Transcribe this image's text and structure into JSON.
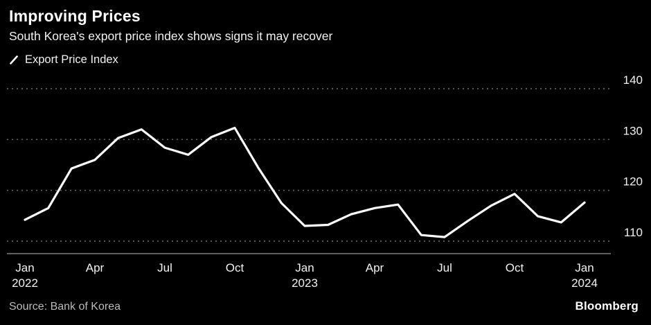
{
  "header": {
    "title": "Improving Prices",
    "subtitle": "South Korea's export price index shows signs it may recover"
  },
  "legend": {
    "label": "Export Price Index"
  },
  "footer": {
    "source": "Source: Bank of Korea",
    "brand": "Bloomberg"
  },
  "chart_data": {
    "type": "line",
    "title": "Improving Prices",
    "subtitle": "South Korea's export price index shows signs it may recover",
    "series_name": "Export Price Index",
    "categories": [
      "Jan 2022",
      "Feb 2022",
      "Mar 2022",
      "Apr 2022",
      "May 2022",
      "Jun 2022",
      "Jul 2022",
      "Aug 2022",
      "Sep 2022",
      "Oct 2022",
      "Nov 2022",
      "Dec 2022",
      "Jan 2023",
      "Feb 2023",
      "Mar 2023",
      "Apr 2023",
      "May 2023",
      "Jun 2023",
      "Jul 2023",
      "Aug 2023",
      "Sep 2023",
      "Oct 2023",
      "Nov 2023",
      "Dec 2023",
      "Jan 2024"
    ],
    "values": [
      114.2,
      116.5,
      124.3,
      126.0,
      130.3,
      132.0,
      128.4,
      127.0,
      130.5,
      132.3,
      124.5,
      117.5,
      113.0,
      113.2,
      115.3,
      116.5,
      117.2,
      111.2,
      110.8,
      114.0,
      117.0,
      119.3,
      114.9,
      113.7,
      117.6
    ],
    "ylim": [
      108,
      142
    ],
    "yticks": [
      110,
      120,
      130,
      140
    ],
    "xticks": [
      {
        "pos": 0,
        "line1": "Jan",
        "line2": "2022"
      },
      {
        "pos": 3,
        "line1": "Apr"
      },
      {
        "pos": 6,
        "line1": "Jul"
      },
      {
        "pos": 9,
        "line1": "Oct"
      },
      {
        "pos": 12,
        "line1": "Jan",
        "line2": "2023"
      },
      {
        "pos": 15,
        "line1": "Apr"
      },
      {
        "pos": 18,
        "line1": "Jul"
      },
      {
        "pos": 21,
        "line1": "Oct"
      },
      {
        "pos": 24,
        "line1": "Jan",
        "line2": "2024"
      }
    ],
    "grid": "dotted-horizontal",
    "legend_position": "top-left",
    "line_color": "#ffffff",
    "grid_color": "#616161",
    "axis_color": "#9a9a9a",
    "tick_text_color": "#f2f2f2",
    "background": "#000000"
  }
}
